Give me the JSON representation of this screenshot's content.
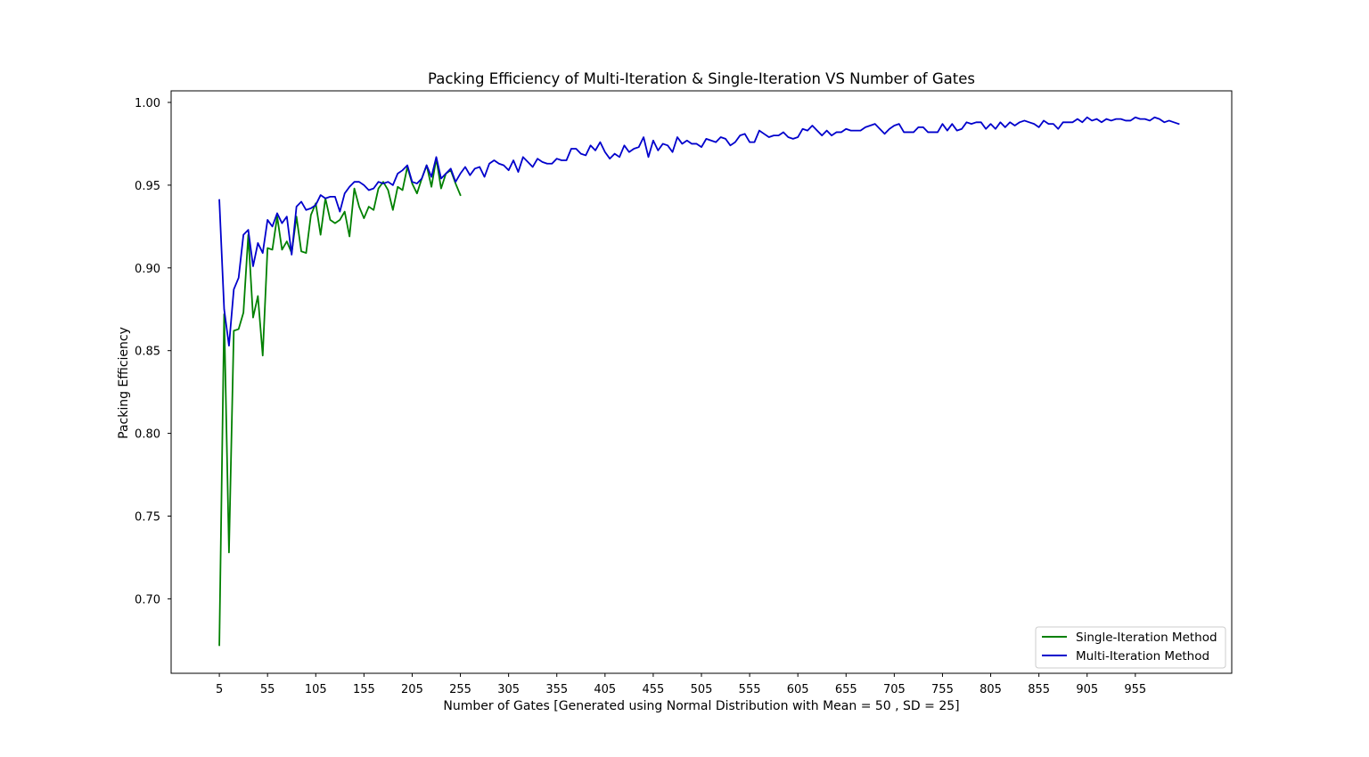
{
  "chart_data": {
    "type": "line",
    "title": "Packing Efficiency of Multi-Iteration & Single-Iteration VS Number of Gates",
    "xlabel": "Number of Gates [Generated using Normal Distribution with Mean = 50 , SD = 25]",
    "ylabel": "Packing Efficiency",
    "xlim": [
      -45,
      1055
    ],
    "ylim": [
      0.655,
      1.007
    ],
    "x_ticks": [
      5,
      55,
      105,
      155,
      205,
      255,
      305,
      355,
      405,
      455,
      505,
      555,
      605,
      655,
      705,
      755,
      805,
      855,
      905,
      955
    ],
    "y_ticks": [
      0.7,
      0.75,
      0.8,
      0.85,
      0.9,
      0.95,
      1.0
    ],
    "y_tick_labels": [
      "0.70",
      "0.75",
      "0.80",
      "0.85",
      "0.90",
      "0.95",
      "1.00"
    ],
    "legend_position": "bottom-right",
    "series": [
      {
        "name": "Single-Iteration Method",
        "color": "#008000",
        "x": [
          5,
          10,
          15,
          20,
          25,
          30,
          35,
          40,
          45,
          50,
          55,
          60,
          65,
          70,
          75,
          80,
          85,
          90,
          95,
          100,
          105,
          110,
          115,
          120,
          125,
          130,
          135,
          140,
          145,
          150,
          155,
          160,
          165,
          170,
          175,
          180,
          185,
          190,
          195,
          200,
          205,
          210,
          215,
          220,
          225,
          230,
          235,
          240,
          245,
          250,
          255
        ],
        "values": [
          0.672,
          0.872,
          0.728,
          0.862,
          0.863,
          0.873,
          0.92,
          0.87,
          0.883,
          0.847,
          0.912,
          0.911,
          0.931,
          0.911,
          0.916,
          0.909,
          0.931,
          0.91,
          0.909,
          0.932,
          0.939,
          0.92,
          0.942,
          0.929,
          0.927,
          0.929,
          0.934,
          0.919,
          0.948,
          0.937,
          0.93,
          0.937,
          0.935,
          0.948,
          0.952,
          0.947,
          0.935,
          0.949,
          0.947,
          0.961,
          0.951,
          0.945,
          0.954,
          0.962,
          0.949,
          0.966,
          0.948,
          0.957,
          0.959,
          0.951,
          0.944
        ]
      },
      {
        "name": "Multi-Iteration Method",
        "color": "#0000cc",
        "x": [
          5,
          10,
          15,
          20,
          25,
          30,
          35,
          40,
          45,
          50,
          55,
          60,
          65,
          70,
          75,
          80,
          85,
          90,
          95,
          100,
          105,
          110,
          115,
          120,
          125,
          130,
          135,
          140,
          145,
          150,
          155,
          160,
          165,
          170,
          175,
          180,
          185,
          190,
          195,
          200,
          205,
          210,
          215,
          220,
          225,
          230,
          235,
          240,
          245,
          250,
          255,
          260,
          265,
          270,
          275,
          280,
          285,
          290,
          295,
          300,
          305,
          310,
          315,
          320,
          325,
          330,
          335,
          340,
          345,
          350,
          355,
          360,
          365,
          370,
          375,
          380,
          385,
          390,
          395,
          400,
          405,
          410,
          415,
          420,
          425,
          430,
          435,
          440,
          445,
          450,
          455,
          460,
          465,
          470,
          475,
          480,
          485,
          490,
          495,
          500,
          505,
          510,
          515,
          520,
          525,
          530,
          535,
          540,
          545,
          550,
          555,
          560,
          565,
          570,
          575,
          580,
          585,
          590,
          595,
          600,
          605,
          610,
          615,
          620,
          625,
          630,
          635,
          640,
          645,
          650,
          655,
          660,
          665,
          670,
          675,
          680,
          685,
          690,
          695,
          700,
          705,
          710,
          715,
          720,
          725,
          730,
          735,
          740,
          745,
          750,
          755,
          760,
          765,
          770,
          775,
          780,
          785,
          790,
          795,
          800,
          805,
          810,
          815,
          820,
          825,
          830,
          835,
          840,
          845,
          850,
          855,
          860,
          865,
          870,
          875,
          880,
          885,
          890,
          895,
          900,
          905,
          910,
          915,
          920,
          925,
          930,
          935,
          940,
          945,
          950,
          955,
          960,
          965,
          970,
          975,
          980,
          985,
          990,
          995,
          1000
        ],
        "values": [
          0.941,
          0.875,
          0.853,
          0.887,
          0.894,
          0.92,
          0.923,
          0.901,
          0.915,
          0.909,
          0.929,
          0.925,
          0.933,
          0.927,
          0.931,
          0.908,
          0.937,
          0.94,
          0.935,
          0.936,
          0.938,
          0.944,
          0.942,
          0.943,
          0.943,
          0.934,
          0.945,
          0.949,
          0.952,
          0.952,
          0.95,
          0.947,
          0.948,
          0.952,
          0.951,
          0.952,
          0.95,
          0.957,
          0.959,
          0.962,
          0.952,
          0.951,
          0.954,
          0.962,
          0.955,
          0.967,
          0.954,
          0.957,
          0.96,
          0.952,
          0.957,
          0.961,
          0.956,
          0.96,
          0.961,
          0.955,
          0.963,
          0.965,
          0.963,
          0.962,
          0.959,
          0.965,
          0.958,
          0.967,
          0.964,
          0.961,
          0.966,
          0.964,
          0.963,
          0.963,
          0.966,
          0.965,
          0.965,
          0.972,
          0.972,
          0.969,
          0.968,
          0.974,
          0.971,
          0.976,
          0.97,
          0.966,
          0.969,
          0.967,
          0.974,
          0.97,
          0.972,
          0.973,
          0.979,
          0.967,
          0.977,
          0.971,
          0.975,
          0.974,
          0.97,
          0.979,
          0.975,
          0.977,
          0.975,
          0.975,
          0.973,
          0.978,
          0.977,
          0.976,
          0.979,
          0.978,
          0.974,
          0.976,
          0.98,
          0.981,
          0.976,
          0.976,
          0.983,
          0.981,
          0.979,
          0.98,
          0.98,
          0.982,
          0.979,
          0.978,
          0.979,
          0.984,
          0.983,
          0.986,
          0.983,
          0.98,
          0.983,
          0.98,
          0.982,
          0.982,
          0.984,
          0.983,
          0.983,
          0.983,
          0.985,
          0.986,
          0.987,
          0.984,
          0.981,
          0.984,
          0.986,
          0.987,
          0.982,
          0.982,
          0.982,
          0.985,
          0.985,
          0.982,
          0.982,
          0.982,
          0.987,
          0.983,
          0.987,
          0.983,
          0.984,
          0.988,
          0.987,
          0.988,
          0.988,
          0.984,
          0.987,
          0.984,
          0.988,
          0.985,
          0.988,
          0.986,
          0.988,
          0.989,
          0.988,
          0.987,
          0.985,
          0.989,
          0.987,
          0.987,
          0.984,
          0.988,
          0.988,
          0.988,
          0.99,
          0.988,
          0.991,
          0.989,
          0.99,
          0.988,
          0.99,
          0.989,
          0.99,
          0.99,
          0.989,
          0.989,
          0.991,
          0.99,
          0.99,
          0.989,
          0.991,
          0.99,
          0.988,
          0.989,
          0.988,
          0.987
        ]
      }
    ]
  }
}
